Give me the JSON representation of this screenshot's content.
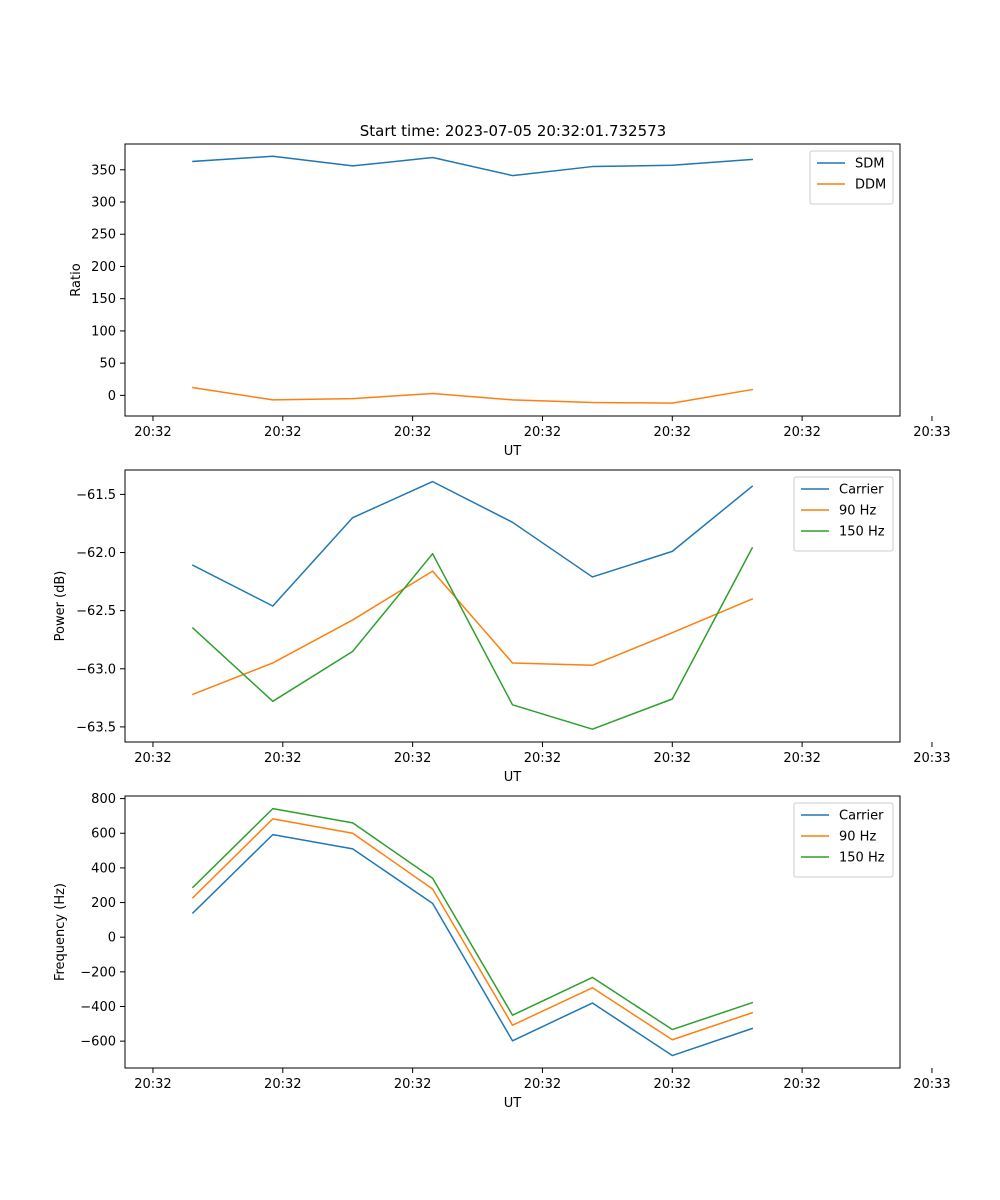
{
  "figure_title": "Start time: 2023-07-05 20:32:01.732573",
  "chart_data": [
    {
      "type": "line",
      "title": "Start time: 2023-07-05 20:32:01.732573",
      "xlabel": "UT",
      "ylabel": "Ratio",
      "xlim": [
        -0.35,
        9.35
      ],
      "ylim": [
        -32,
        390
      ],
      "x": [
        0.5,
        1.5,
        2.5,
        3.5,
        4.5,
        5.5,
        6.5,
        7.5
      ],
      "xticks": [
        0,
        1.625,
        3.25,
        4.875,
        6.5,
        8.125,
        9.75
      ],
      "xtick_labels": [
        "20:32",
        "20:32",
        "20:32",
        "20:32",
        "20:32",
        "20:32",
        "20:33"
      ],
      "yticks": [
        0,
        50,
        100,
        150,
        200,
        250,
        300,
        350
      ],
      "ytick_labels": [
        "0",
        "50",
        "100",
        "150",
        "200",
        "250",
        "300",
        "350"
      ],
      "legend_position": "top-right",
      "series": [
        {
          "name": "SDM",
          "color": "#1f77b4",
          "values": [
            363,
            371,
            356,
            369,
            341,
            355,
            357,
            366
          ]
        },
        {
          "name": "DDM",
          "color": "#ff7f0e",
          "values": [
            12,
            -7,
            -5,
            3,
            -7,
            -11,
            -12,
            9
          ]
        }
      ]
    },
    {
      "type": "line",
      "xlabel": "UT",
      "ylabel": "Power (dB)",
      "xlim": [
        -0.35,
        9.35
      ],
      "ylim": [
        -63.63,
        -61.29
      ],
      "x": [
        0.5,
        1.5,
        2.5,
        3.5,
        4.5,
        5.5,
        6.5,
        7.5
      ],
      "xticks": [
        0,
        1.625,
        3.25,
        4.875,
        6.5,
        8.125,
        9.75
      ],
      "xtick_labels": [
        "20:32",
        "20:32",
        "20:32",
        "20:32",
        "20:32",
        "20:32",
        "20:33"
      ],
      "yticks": [
        -63.5,
        -63.0,
        -62.5,
        -62.0,
        -61.5
      ],
      "ytick_labels": [
        "−63.5",
        "−63.0",
        "−62.5",
        "−62.0",
        "−61.5"
      ],
      "legend_position": "top-right",
      "series": [
        {
          "name": "Carrier",
          "color": "#1f77b4",
          "values": [
            -62.11,
            -62.46,
            -61.7,
            -61.39,
            -61.74,
            -62.21,
            -61.99,
            -61.43
          ]
        },
        {
          "name": "90 Hz",
          "color": "#ff7f0e",
          "values": [
            -63.22,
            -62.95,
            -62.58,
            -62.16,
            -62.95,
            -62.97,
            -62.69,
            -62.4
          ]
        },
        {
          "name": "150 Hz",
          "color": "#2ca02c",
          "values": [
            -62.65,
            -63.28,
            -62.85,
            -62.01,
            -63.31,
            -63.52,
            -63.26,
            -61.96
          ]
        }
      ]
    },
    {
      "type": "line",
      "xlabel": "UT",
      "ylabel": "Frequency (Hz)",
      "xlim": [
        -0.35,
        9.35
      ],
      "ylim": [
        -755,
        815
      ],
      "x": [
        0.5,
        1.5,
        2.5,
        3.5,
        4.5,
        5.5,
        6.5,
        7.5
      ],
      "xticks": [
        0,
        1.625,
        3.25,
        4.875,
        6.5,
        8.125,
        9.75
      ],
      "xtick_labels": [
        "20:32",
        "20:32",
        "20:32",
        "20:32",
        "20:32",
        "20:32",
        "20:33"
      ],
      "yticks": [
        -600,
        -400,
        -200,
        0,
        200,
        400,
        600,
        800
      ],
      "ytick_labels": [
        "−600",
        "−400",
        "−200",
        "0",
        "200",
        "400",
        "600",
        "800"
      ],
      "legend_position": "top-right",
      "series": [
        {
          "name": "Carrier",
          "color": "#1f77b4",
          "values": [
            140,
            592,
            510,
            195,
            -598,
            -380,
            -683,
            -527
          ]
        },
        {
          "name": "90 Hz",
          "color": "#ff7f0e",
          "values": [
            228,
            683,
            600,
            278,
            -508,
            -292,
            -592,
            -436
          ]
        },
        {
          "name": "150 Hz",
          "color": "#2ca02c",
          "values": [
            288,
            742,
            660,
            340,
            -450,
            -232,
            -533,
            -378
          ]
        }
      ]
    }
  ]
}
